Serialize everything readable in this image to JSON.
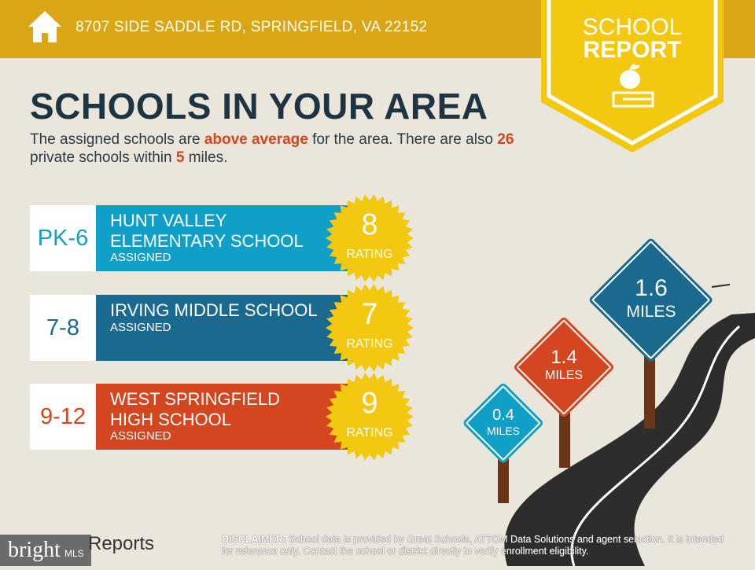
{
  "header": {
    "address": "8707 SIDE SADDLE RD, SPRINGFIELD, VA 22152",
    "home_icon": "house-icon",
    "color": "#dba616"
  },
  "banner": {
    "line1": "SCHOOL",
    "line2": "REPORT",
    "icon": "apple-on-book-icon",
    "color": "#f2c811"
  },
  "title": "SCHOOLS IN YOUR AREA",
  "intro": {
    "p1": "The assigned schools are ",
    "hl1": "above average",
    "p2": " for the area. There are also ",
    "hl2": "26",
    "p3": " private schools within ",
    "hl3": "5",
    "p4": " miles."
  },
  "schools": [
    {
      "grades": "PK-6",
      "name1": "HUNT VALLEY",
      "name2": "ELEMENTARY SCHOOL",
      "status": "ASSIGNED",
      "rating": "8",
      "rating_label": "RATING",
      "color": "#109fc6"
    },
    {
      "grades": "7-8",
      "name1": "IRVING MIDDLE SCHOOL",
      "name2": "",
      "status": "ASSIGNED",
      "rating": "7",
      "rating_label": "RATING",
      "color": "#1a6a8f"
    },
    {
      "grades": "9-12",
      "name1": "WEST SPRINGFIELD",
      "name2": "HIGH SCHOOL",
      "status": "ASSIGNED",
      "rating": "9",
      "rating_label": "RATING",
      "color": "#d4461f"
    }
  ],
  "signs": [
    {
      "value": "0.4",
      "unit": "MILES",
      "color": "#109fc6"
    },
    {
      "value": "1.4",
      "unit": "MILES",
      "color": "#d4461f"
    },
    {
      "value": "1.6",
      "unit": "MILES",
      "color": "#1a6a8f"
    }
  ],
  "footer": {
    "logo_text": "bright",
    "logo_sub": "MLS",
    "reports": "Reports",
    "disclaimer_label": "DISCLAIMER:",
    "disclaimer": " School data is provided by Great Schools, ATTOM Data Solutions and agent selection. It is intended for reference only. Contact the school or district directly to verify enrollment eligibility."
  }
}
